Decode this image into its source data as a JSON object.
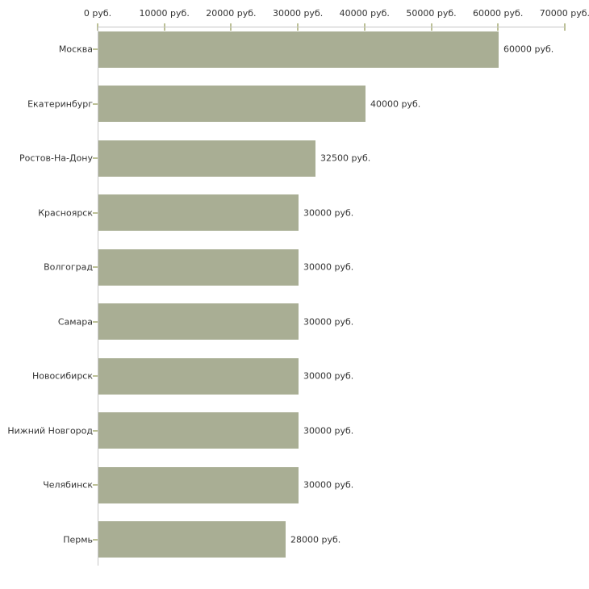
{
  "chart_data": {
    "type": "bar",
    "orientation": "horizontal",
    "title": "",
    "categories": [
      "Москва",
      "Екатеринбург",
      "Ростов-На-Дону",
      "Красноярск",
      "Волгоград",
      "Самара",
      "Новосибирск",
      "Нижний Новгород",
      "Челябинск",
      "Пермь"
    ],
    "values": [
      60000,
      40000,
      32500,
      30000,
      30000,
      30000,
      30000,
      30000,
      30000,
      28000
    ],
    "value_labels": [
      "60000 руб.",
      "40000 руб.",
      "32500 руб.",
      "30000 руб.",
      "30000 руб.",
      "30000 руб.",
      "30000 руб.",
      "30000 руб.",
      "30000 руб.",
      "28000 руб."
    ],
    "x_axis": {
      "position": "top",
      "tick_values": [
        0,
        10000,
        20000,
        30000,
        40000,
        50000,
        60000,
        70000
      ],
      "tick_labels": [
        "0 руб.",
        "10000 руб.",
        "20000 руб.",
        "30000 руб.",
        "40000 руб.",
        "50000 руб.",
        "60000 руб.",
        "70000 руб."
      ],
      "min": 0,
      "max": 70000
    },
    "grid": false,
    "legend": false,
    "colors": {
      "bar_fill": "#a9ae94",
      "axis_line": "#c6c6c6",
      "tick_mark": "#bcc096",
      "label_text": "#333333",
      "background": "#ffffff"
    }
  }
}
